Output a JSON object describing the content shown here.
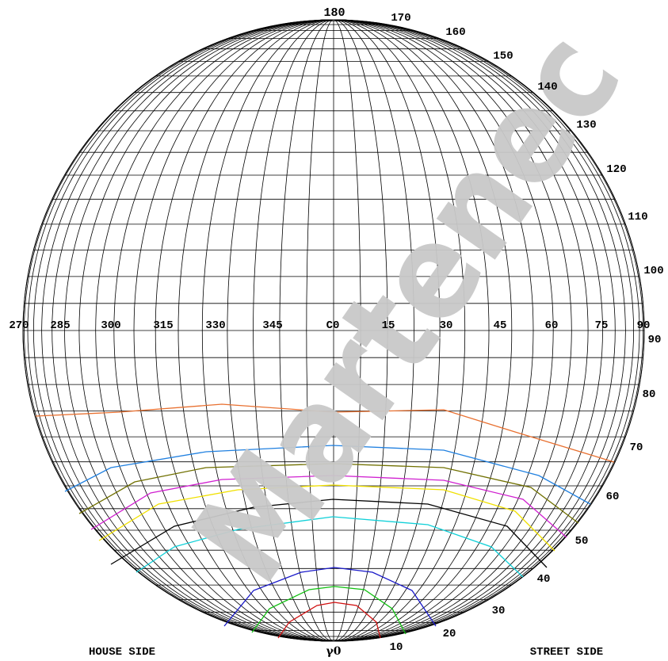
{
  "diagram": {
    "c_plane_labels": [
      "270",
      "285",
      "300",
      "315",
      "330",
      "345",
      "C0",
      "15",
      "30",
      "45",
      "60",
      "75",
      "90"
    ],
    "angle_labels": [
      "180",
      "170",
      "160",
      "150",
      "140",
      "130",
      "120",
      "110",
      "100",
      "90",
      "80",
      "70",
      "60",
      "50",
      "40",
      "30",
      "20",
      "10"
    ],
    "bottom_label": "γ0",
    "left_caption": "HOUSE SIDE",
    "right_caption": "STREET SIDE",
    "watermark": "Martenec",
    "watermark_color": "#c8c8c8",
    "curve_colors": [
      "#e87030",
      "#2080e0",
      "#707000",
      "#d020d0",
      "#f0e000",
      "#000000",
      "#10d0d8",
      "#1818c8",
      "#10c010",
      "#d01010"
    ]
  }
}
